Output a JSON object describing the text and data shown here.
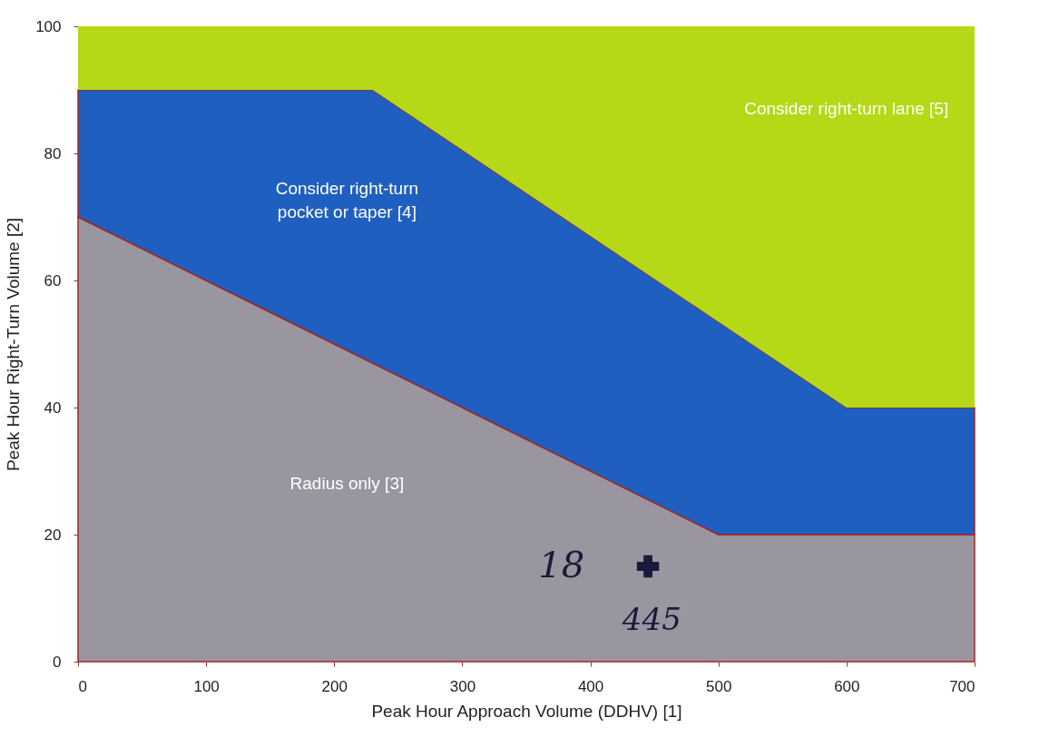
{
  "chart_data": {
    "type": "area",
    "stacked": true,
    "xlabel": "Peak Hour Approach Volume (DDHV) [1]",
    "ylabel": "Peak Hour Right-Turn Volume [2]",
    "x": [
      0,
      230,
      500,
      600,
      700
    ],
    "series": [
      {
        "color": "#9a96a0",
        "values": [
          70,
          47,
          20,
          20,
          20
        ]
      },
      {
        "color": "#1f5fc0",
        "values": [
          20,
          43,
          33.5,
          20,
          20
        ]
      },
      {
        "color": "#b5d916",
        "values": [
          10,
          10,
          46.5,
          60,
          60
        ]
      },
      {
        "type": "scatter",
        "color": "#1a1a3a",
        "x": [
          445
        ],
        "values": [
          15
        ],
        "marker": "cross"
      }
    ],
    "xlim": [
      0,
      700
    ],
    "xticks": [
      0,
      100,
      200,
      300,
      400,
      500,
      600,
      700
    ],
    "ylim": [
      0,
      100
    ],
    "yticks": [
      0,
      20,
      40,
      60,
      80,
      100
    ],
    "grid": false,
    "annotations": [
      "Consider right-turn lane [5]",
      "Consider right-turn\npocket or taper [4]",
      "Radius only [3]",
      "18",
      "445"
    ]
  }
}
